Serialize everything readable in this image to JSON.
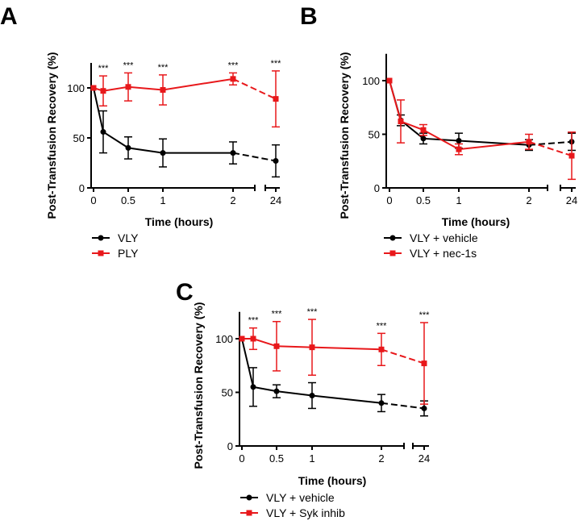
{
  "colors": {
    "red": "#e8181b",
    "black": "#000000"
  },
  "chart_data": [
    {
      "type": "line",
      "panel_label": "A",
      "xlabel": "Time (hours)",
      "ylabel": "Post-Transfusion Recovery (%)",
      "ylim": [
        0,
        125
      ],
      "yticks": [
        "0",
        "50",
        "100"
      ],
      "xticks": [
        "0",
        "0.5",
        "1",
        "2",
        "24"
      ],
      "x_broken_axis": true,
      "x": [
        0,
        0.167,
        0.5,
        1,
        2,
        24
      ],
      "series": [
        {
          "name": "VLY",
          "color": "#000000",
          "marker": "circle",
          "values": [
            100,
            56,
            40,
            35,
            35,
            27
          ],
          "err": [
            0,
            21,
            11,
            14,
            11,
            16
          ]
        },
        {
          "name": "PLY",
          "color": "#e8181b",
          "marker": "square",
          "values": [
            100,
            97,
            101,
            98,
            109,
            89
          ],
          "err": [
            0,
            15,
            14,
            15,
            6,
            28
          ]
        }
      ],
      "annotations": [
        "***",
        "***",
        "***",
        "***",
        "***"
      ]
    },
    {
      "type": "line",
      "panel_label": "B",
      "xlabel": "Time (hours)",
      "ylabel": "Post-Transfusion Recovery (%)",
      "ylim": [
        0,
        125
      ],
      "yticks": [
        "0",
        "50",
        "100"
      ],
      "xticks": [
        "0",
        "0.5",
        "1",
        "2",
        "24"
      ],
      "x_broken_axis": true,
      "x": [
        0,
        0.167,
        0.5,
        1,
        2,
        24
      ],
      "series": [
        {
          "name": "VLY + vehicle",
          "color": "#000000",
          "marker": "circle",
          "values": [
            100,
            63,
            46,
            44,
            40,
            43
          ],
          "err": [
            0,
            5,
            5,
            7,
            5,
            8
          ]
        },
        {
          "name": "VLY + nec-1s",
          "color": "#e8181b",
          "marker": "square",
          "values": [
            100,
            62,
            54,
            36,
            43,
            30
          ],
          "err": [
            0,
            20,
            5,
            5,
            7,
            22
          ]
        }
      ],
      "annotations": []
    },
    {
      "type": "line",
      "panel_label": "C",
      "xlabel": "Time (hours)",
      "ylabel": "Post-Transfusion Recovery (%)",
      "ylim": [
        0,
        125
      ],
      "yticks": [
        "0",
        "50",
        "100"
      ],
      "xticks": [
        "0",
        "0.5",
        "1",
        "2",
        "24"
      ],
      "x_broken_axis": true,
      "x": [
        0,
        0.167,
        0.5,
        1,
        2,
        24
      ],
      "series": [
        {
          "name": "VLY + vehicle",
          "color": "#000000",
          "marker": "circle",
          "values": [
            100,
            55,
            51,
            47,
            40,
            35
          ],
          "err": [
            0,
            18,
            6,
            12,
            8,
            7
          ]
        },
        {
          "name": "VLY + Syk inhib",
          "color": "#e8181b",
          "marker": "square",
          "values": [
            100,
            100,
            93,
            92,
            90,
            77
          ],
          "err": [
            0,
            10,
            23,
            26,
            15,
            38
          ]
        }
      ],
      "annotations": [
        "***",
        "***",
        "***",
        "***",
        "***"
      ]
    }
  ]
}
